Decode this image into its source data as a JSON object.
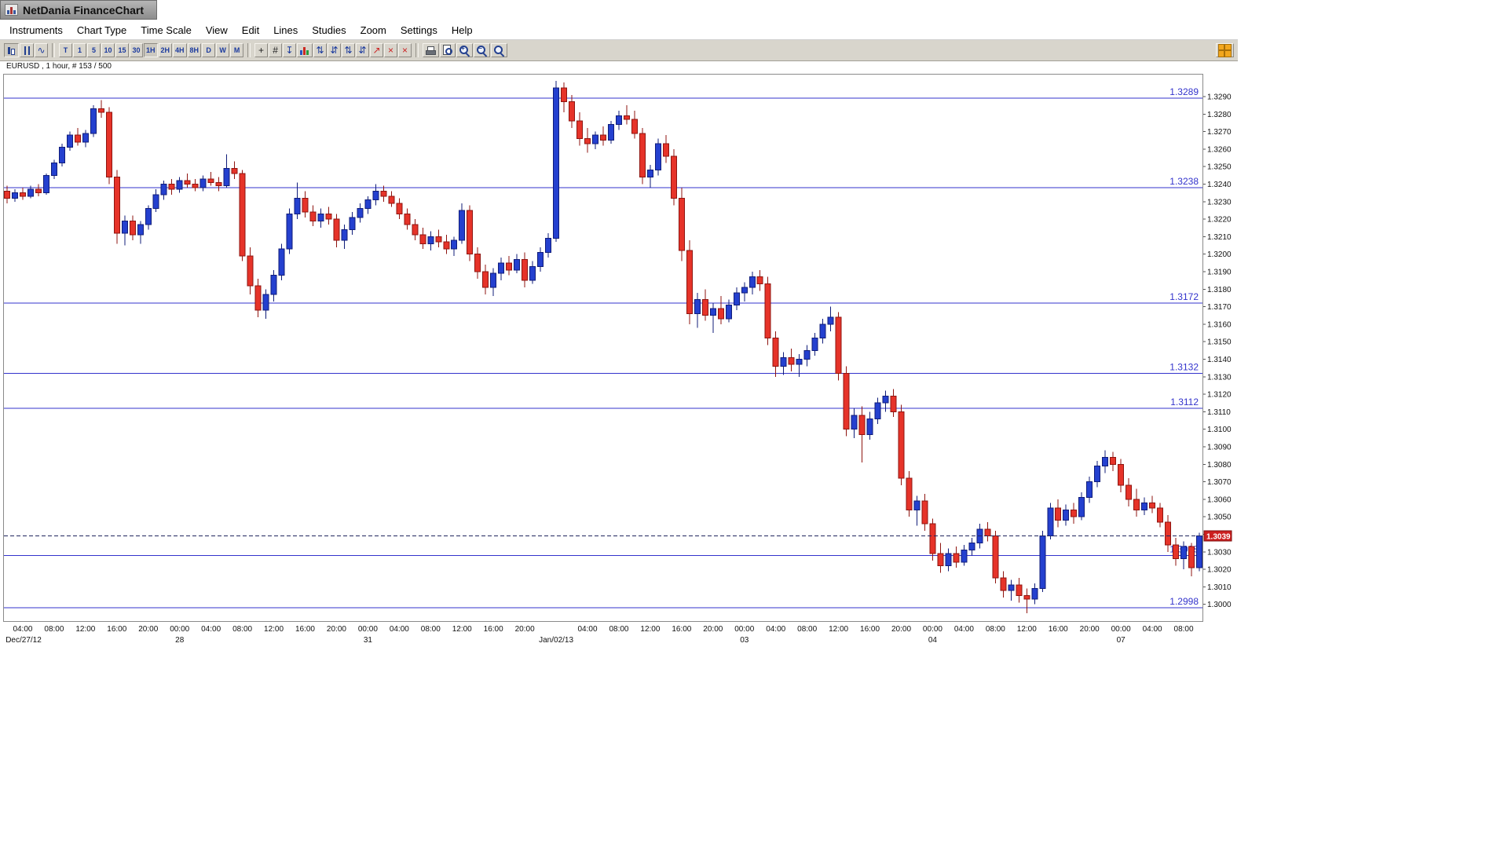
{
  "window": {
    "title": "NetDania FinanceChart"
  },
  "menu": {
    "items": [
      "Instruments",
      "Chart Type",
      "Time Scale",
      "View",
      "Edit",
      "Lines",
      "Studies",
      "Zoom",
      "Settings",
      "Help"
    ]
  },
  "toolbar": {
    "chart_type_tools": [
      {
        "name": "candlestick-chart-button",
        "css": "icon-candle",
        "active": true
      },
      {
        "name": "ohlc-chart-button",
        "css": "icon-ohlc"
      },
      {
        "name": "line-chart-button",
        "glyph": "∿",
        "color": "#1b3a9e"
      }
    ],
    "timeframes": [
      {
        "label": "T"
      },
      {
        "label": "1"
      },
      {
        "label": "5"
      },
      {
        "label": "10"
      },
      {
        "label": "15"
      },
      {
        "label": "30"
      },
      {
        "label": "1H",
        "active": true
      },
      {
        "label": "2H"
      },
      {
        "label": "4H"
      },
      {
        "label": "8H"
      },
      {
        "label": "D"
      },
      {
        "label": "W"
      },
      {
        "label": "M"
      }
    ],
    "draw_tools": [
      {
        "name": "crosshair-button",
        "glyph": "+",
        "color": "#222222"
      },
      {
        "name": "grid-toggle-button",
        "glyph": "#",
        "color": "#222222"
      },
      {
        "name": "data-inspect-button",
        "glyph": "↧",
        "color": "#1b3a9e"
      },
      {
        "name": "studies-columns-button",
        "css": "icon-cols"
      },
      {
        "name": "signal-arrows-button-1",
        "glyph": "⇅",
        "color": "#1b3a9e"
      },
      {
        "name": "signal-arrows-button-2",
        "glyph": "⇵",
        "color": "#1b3a9e"
      },
      {
        "name": "signal-arrows-button-3",
        "glyph": "⇅",
        "color": "#1b3a9e"
      },
      {
        "name": "signal-arrows-button-4",
        "glyph": "⇵",
        "color": "#1b3a9e"
      },
      {
        "name": "trendline-button",
        "glyph": "↗",
        "color": "#cc2222"
      },
      {
        "name": "delete-line-button",
        "glyph": "×",
        "color": "#cc2222"
      },
      {
        "name": "delete-all-button",
        "glyph": "×",
        "color": "#cc2222"
      }
    ],
    "output_tools": [
      {
        "name": "print-button",
        "css": "icon-printer"
      },
      {
        "name": "print-preview-button",
        "css": "icon-preview"
      },
      {
        "name": "zoom-in-button",
        "css": "icon-mag",
        "sign": "+"
      },
      {
        "name": "zoom-out-button",
        "css": "icon-mag",
        "sign": "−"
      },
      {
        "name": "zoom-box-button",
        "css": "icon-mag"
      }
    ],
    "right_tool": {
      "name": "netdania-panel-button",
      "css": "icon-grid"
    }
  },
  "chart": {
    "info_label": "EURUSD , 1 hour, # 153 / 500",
    "current_price_label": "1.3039"
  },
  "chart_data": {
    "type": "candlestick",
    "instrument": "EURUSD",
    "interval": "1 hour",
    "visible_bars": 153,
    "total_bars": 500,
    "price_base": 1.3,
    "pip": 0.0001,
    "up_color": "#2440cf",
    "up_edge": "#101d7a",
    "down_color": "#e63329",
    "down_edge": "#8f1510",
    "line_color": "#3333cc",
    "current_price_line_color": "#20255e",
    "badge_color": "#cc1f1f",
    "current_price": 1.3039,
    "horizontal_lines": [
      1.3289,
      1.3238,
      1.3172,
      1.3132,
      1.3112,
      1.3028,
      1.2998
    ],
    "y_axis": {
      "min": 1.299,
      "max": 1.3303,
      "tick_step": 0.001,
      "first_label": 1.3,
      "last_label": 1.329
    },
    "candles_pips": [
      [
        236,
        239,
        229,
        232
      ],
      [
        232,
        237,
        230,
        235
      ],
      [
        235,
        238,
        231,
        233
      ],
      [
        233,
        239,
        232,
        237
      ],
      [
        237,
        240,
        233,
        235
      ],
      [
        235,
        246,
        234,
        245
      ],
      [
        245,
        254,
        243,
        252
      ],
      [
        252,
        263,
        250,
        261
      ],
      [
        261,
        270,
        259,
        268
      ],
      [
        268,
        272,
        262,
        264
      ],
      [
        264,
        271,
        261,
        269
      ],
      [
        269,
        285,
        267,
        283
      ],
      [
        283,
        288,
        278,
        281
      ],
      [
        281,
        284,
        240,
        244
      ],
      [
        244,
        248,
        206,
        212
      ],
      [
        212,
        222,
        205,
        219
      ],
      [
        219,
        222,
        208,
        211
      ],
      [
        211,
        219,
        206,
        217
      ],
      [
        217,
        228,
        214,
        226
      ],
      [
        226,
        237,
        224,
        234
      ],
      [
        234,
        242,
        231,
        240
      ],
      [
        240,
        243,
        234,
        237
      ],
      [
        237,
        244,
        235,
        242
      ],
      [
        242,
        246,
        238,
        240
      ],
      [
        240,
        243,
        236,
        238
      ],
      [
        238,
        245,
        236,
        243
      ],
      [
        243,
        247,
        239,
        241
      ],
      [
        241,
        244,
        236,
        239
      ],
      [
        239,
        257,
        238,
        249
      ],
      [
        249,
        253,
        243,
        246
      ],
      [
        246,
        248,
        196,
        199
      ],
      [
        199,
        204,
        177,
        182
      ],
      [
        182,
        186,
        164,
        168
      ],
      [
        168,
        180,
        163,
        177
      ],
      [
        177,
        191,
        173,
        188
      ],
      [
        188,
        206,
        185,
        203
      ],
      [
        203,
        226,
        200,
        223
      ],
      [
        223,
        241,
        220,
        232
      ],
      [
        232,
        236,
        221,
        224
      ],
      [
        224,
        228,
        216,
        219
      ],
      [
        219,
        226,
        215,
        223
      ],
      [
        223,
        227,
        217,
        220
      ],
      [
        220,
        223,
        204,
        208
      ],
      [
        208,
        217,
        203,
        214
      ],
      [
        214,
        224,
        211,
        221
      ],
      [
        221,
        229,
        218,
        226
      ],
      [
        226,
        233,
        223,
        231
      ],
      [
        231,
        240,
        228,
        236
      ],
      [
        236,
        239,
        230,
        233
      ],
      [
        233,
        236,
        227,
        229
      ],
      [
        229,
        232,
        220,
        223
      ],
      [
        223,
        226,
        214,
        217
      ],
      [
        217,
        220,
        208,
        211
      ],
      [
        211,
        215,
        203,
        206
      ],
      [
        206,
        213,
        202,
        210
      ],
      [
        210,
        214,
        204,
        207
      ],
      [
        207,
        211,
        200,
        203
      ],
      [
        203,
        210,
        199,
        208
      ],
      [
        208,
        229,
        206,
        225
      ],
      [
        225,
        228,
        196,
        200
      ],
      [
        200,
        204,
        186,
        190
      ],
      [
        190,
        194,
        177,
        181
      ],
      [
        181,
        192,
        176,
        189
      ],
      [
        189,
        198,
        185,
        195
      ],
      [
        195,
        199,
        188,
        191
      ],
      [
        191,
        200,
        189,
        197
      ],
      [
        197,
        201,
        181,
        185
      ],
      [
        185,
        196,
        183,
        193
      ],
      [
        193,
        204,
        190,
        201
      ],
      [
        201,
        212,
        198,
        209
      ],
      [
        209,
        299,
        207,
        295
      ],
      [
        295,
        298,
        281,
        287
      ],
      [
        287,
        291,
        272,
        276
      ],
      [
        276,
        281,
        262,
        266
      ],
      [
        266,
        272,
        258,
        263
      ],
      [
        263,
        270,
        260,
        268
      ],
      [
        268,
        273,
        262,
        265
      ],
      [
        265,
        276,
        263,
        274
      ],
      [
        274,
        282,
        271,
        279
      ],
      [
        279,
        285,
        274,
        277
      ],
      [
        277,
        282,
        266,
        269
      ],
      [
        269,
        272,
        240,
        244
      ],
      [
        244,
        251,
        238,
        248
      ],
      [
        248,
        266,
        245,
        263
      ],
      [
        263,
        268,
        252,
        256
      ],
      [
        256,
        260,
        228,
        232
      ],
      [
        232,
        238,
        196,
        202
      ],
      [
        202,
        208,
        160,
        166
      ],
      [
        166,
        178,
        158,
        174
      ],
      [
        174,
        180,
        162,
        165
      ],
      [
        165,
        172,
        155,
        169
      ],
      [
        169,
        176,
        160,
        163
      ],
      [
        163,
        174,
        161,
        171
      ],
      [
        171,
        181,
        168,
        178
      ],
      [
        178,
        184,
        173,
        181
      ],
      [
        181,
        190,
        177,
        187
      ],
      [
        187,
        191,
        179,
        183
      ],
      [
        183,
        187,
        148,
        152
      ],
      [
        152,
        156,
        130,
        136
      ],
      [
        136,
        144,
        131,
        141
      ],
      [
        141,
        146,
        133,
        137
      ],
      [
        137,
        143,
        130,
        140
      ],
      [
        140,
        148,
        136,
        145
      ],
      [
        145,
        155,
        142,
        152
      ],
      [
        152,
        163,
        149,
        160
      ],
      [
        160,
        170,
        156,
        164
      ],
      [
        164,
        167,
        128,
        132
      ],
      [
        132,
        136,
        96,
        100
      ],
      [
        100,
        112,
        95,
        108
      ],
      [
        108,
        113,
        81,
        97
      ],
      [
        97,
        110,
        94,
        106
      ],
      [
        106,
        118,
        103,
        115
      ],
      [
        115,
        122,
        110,
        119
      ],
      [
        119,
        123,
        107,
        110
      ],
      [
        110,
        114,
        68,
        72
      ],
      [
        72,
        76,
        50,
        54
      ],
      [
        54,
        62,
        45,
        59
      ],
      [
        59,
        63,
        42,
        46
      ],
      [
        46,
        49,
        25,
        29
      ],
      [
        29,
        35,
        18,
        22
      ],
      [
        22,
        32,
        19,
        29
      ],
      [
        29,
        33,
        21,
        24
      ],
      [
        24,
        34,
        22,
        31
      ],
      [
        31,
        38,
        28,
        35
      ],
      [
        35,
        46,
        32,
        43
      ],
      [
        43,
        47,
        36,
        39
      ],
      [
        39,
        42,
        12,
        15
      ],
      [
        15,
        19,
        4,
        8
      ],
      [
        8,
        14,
        2,
        11
      ],
      [
        11,
        15,
        1,
        5
      ],
      [
        5,
        9,
        -5,
        3
      ],
      [
        3,
        12,
        0,
        9
      ],
      [
        9,
        42,
        7,
        39
      ],
      [
        39,
        58,
        37,
        55
      ],
      [
        55,
        60,
        44,
        48
      ],
      [
        48,
        57,
        45,
        54
      ],
      [
        54,
        58,
        46,
        50
      ],
      [
        50,
        64,
        48,
        61
      ],
      [
        61,
        73,
        58,
        70
      ],
      [
        70,
        82,
        67,
        79
      ],
      [
        79,
        88,
        75,
        84
      ],
      [
        84,
        87,
        76,
        80
      ],
      [
        80,
        83,
        64,
        68
      ],
      [
        68,
        72,
        56,
        60
      ],
      [
        60,
        66,
        50,
        54
      ],
      [
        54,
        61,
        51,
        58
      ],
      [
        58,
        62,
        52,
        55
      ],
      [
        55,
        58,
        44,
        47
      ],
      [
        47,
        51,
        30,
        34
      ],
      [
        34,
        38,
        22,
        26
      ],
      [
        26,
        36,
        20,
        33
      ],
      [
        33,
        35,
        16,
        21
      ],
      [
        21,
        41,
        19,
        39
      ]
    ],
    "time_labels": [
      {
        "i": 2,
        "t": "04:00"
      },
      {
        "i": 6,
        "t": "08:00"
      },
      {
        "i": 10,
        "t": "12:00"
      },
      {
        "i": 14,
        "t": "16:00"
      },
      {
        "i": 18,
        "t": "20:00"
      },
      {
        "i": 22,
        "t": "00:00"
      },
      {
        "i": 26,
        "t": "04:00"
      },
      {
        "i": 30,
        "t": "08:00"
      },
      {
        "i": 34,
        "t": "12:00"
      },
      {
        "i": 38,
        "t": "16:00"
      },
      {
        "i": 42,
        "t": "20:00"
      },
      {
        "i": 46,
        "t": "00:00"
      },
      {
        "i": 50,
        "t": "04:00"
      },
      {
        "i": 54,
        "t": "08:00"
      },
      {
        "i": 58,
        "t": "12:00"
      },
      {
        "i": 62,
        "t": "16:00"
      },
      {
        "i": 66,
        "t": "20:00"
      },
      {
        "i": 74,
        "t": "04:00"
      },
      {
        "i": 78,
        "t": "08:00"
      },
      {
        "i": 82,
        "t": "12:00"
      },
      {
        "i": 86,
        "t": "16:00"
      },
      {
        "i": 90,
        "t": "20:00"
      },
      {
        "i": 94,
        "t": "00:00"
      },
      {
        "i": 98,
        "t": "04:00"
      },
      {
        "i": 102,
        "t": "08:00"
      },
      {
        "i": 106,
        "t": "12:00"
      },
      {
        "i": 110,
        "t": "16:00"
      },
      {
        "i": 114,
        "t": "20:00"
      },
      {
        "i": 118,
        "t": "00:00"
      },
      {
        "i": 122,
        "t": "04:00"
      },
      {
        "i": 126,
        "t": "08:00"
      },
      {
        "i": 130,
        "t": "12:00"
      },
      {
        "i": 134,
        "t": "16:00"
      },
      {
        "i": 138,
        "t": "20:00"
      },
      {
        "i": 142,
        "t": "00:00"
      },
      {
        "i": 146,
        "t": "04:00"
      },
      {
        "i": 150,
        "t": "08:00"
      }
    ],
    "date_labels": [
      {
        "i": 1,
        "t": "Dec/27/12"
      },
      {
        "i": 22,
        "t": "28"
      },
      {
        "i": 46,
        "t": "31"
      },
      {
        "i": 70,
        "t": "Jan/02/13"
      },
      {
        "i": 94,
        "t": "03"
      },
      {
        "i": 118,
        "t": "04"
      },
      {
        "i": 142,
        "t": "07"
      }
    ]
  }
}
